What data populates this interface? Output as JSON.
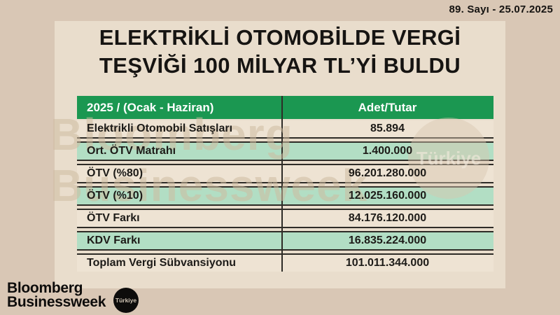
{
  "issue": {
    "label": "89. Sayı - 25.07.2025"
  },
  "title": {
    "line1": "ELEKTRİKLİ OTOMOBİLDE VERGİ",
    "line2": "TEŞVİĞİ 100 MİLYAR TL’Yİ BULDU"
  },
  "chart_data": {
    "type": "table",
    "title": "ELEKTRİKLİ OTOMOBİLDE VERGİ TEŞVİĞİ 100 MİLYAR TL’Yİ BULDU",
    "columns": [
      "2025 / (Ocak - Haziran)",
      "Adet/Tutar"
    ],
    "rows": [
      [
        "Elektrikli Otomobil Satışları",
        "85.894"
      ],
      [
        "Ort. ÖTV Matrahı",
        "1.400.000"
      ],
      [
        "ÖTV (%80)",
        "96.201.280.000"
      ],
      [
        "ÖTV (%10)",
        "12.025.160.000"
      ],
      [
        "ÖTV Farkı",
        "84.176.120.000"
      ],
      [
        "KDV Farkı",
        "16.835.224.000"
      ],
      [
        "Toplam Vergi Sübvansiyonu",
        "101.011.344.000"
      ]
    ]
  },
  "watermark": {
    "line1": "Bloomberg",
    "line2": "Businessweek",
    "circle_label": "Türkiye"
  },
  "logo": {
    "line1": "Bloomberg",
    "line2": "Businessweek",
    "badge_label": "Türkiye"
  },
  "colors": {
    "background": "#d9c7b5",
    "panel": "#e9ddcc",
    "header_green": "#1b9751",
    "row_mint": "#b2dec4",
    "row_beige": "#eee3d3",
    "divider_dark": "#2e2c27"
  }
}
